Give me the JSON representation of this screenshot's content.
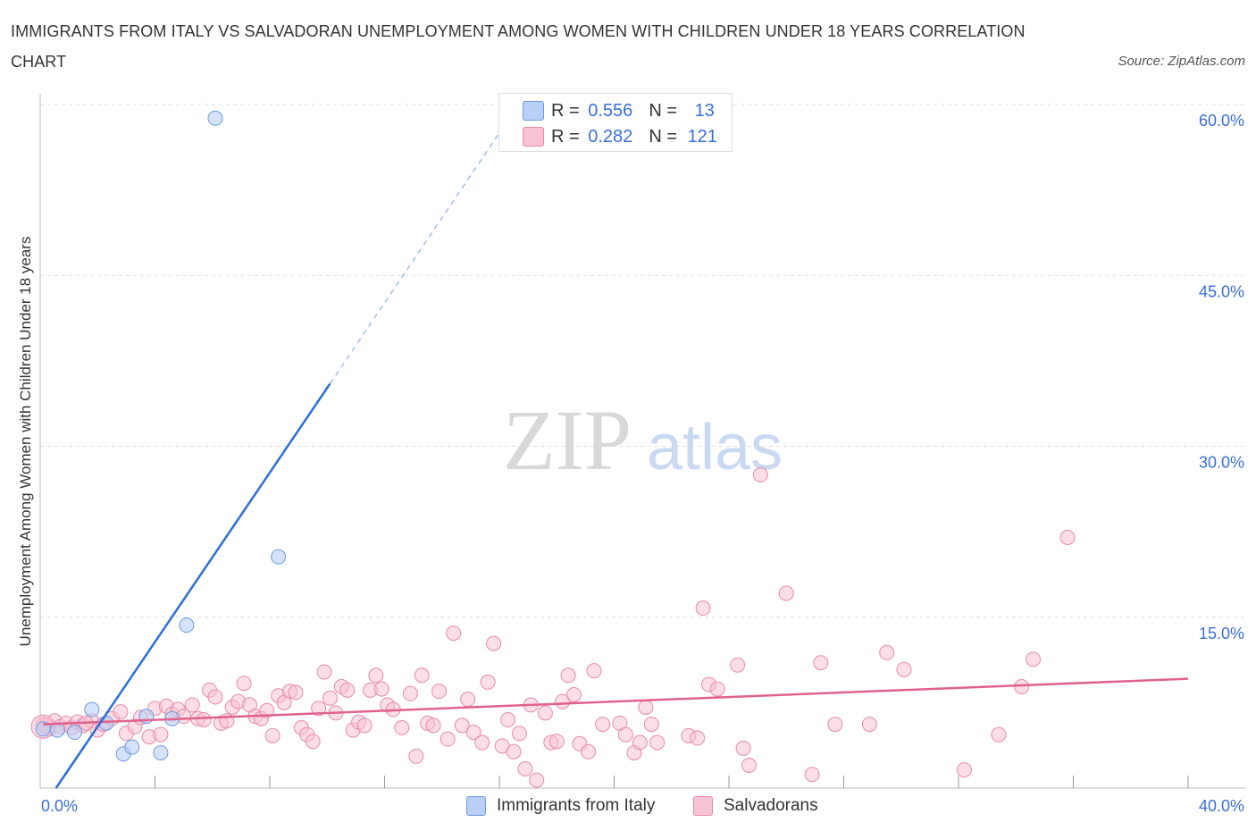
{
  "title": "IMMIGRANTS FROM ITALY VS SALVADORAN UNEMPLOYMENT AMONG WOMEN WITH CHILDREN UNDER 18 YEARS CORRELATION CHART",
  "source": "Source: ZipAtlas.com",
  "watermark": {
    "zip": "ZIP",
    "atlas": "atlas"
  },
  "legend_top": {
    "rows": [
      {
        "r_label": "R = ",
        "r_value": "0.556",
        "n_label": "N = ",
        "n_value": "13"
      },
      {
        "r_label": "R = ",
        "r_value": "0.282",
        "n_label": "N = ",
        "n_value": "121"
      }
    ]
  },
  "legend_bottom": {
    "series_a": "Immigrants from Italy",
    "series_b": "Salvadorans"
  },
  "colors": {
    "blue_fill": "#b9cff5",
    "blue_stroke": "#6d9be0",
    "blue_line": "#2e6fd1",
    "pink_fill": "#f7c2d4",
    "pink_stroke": "#e98aa9",
    "pink_line": "#e0628c",
    "tick_label": "#3a6fd8",
    "grid": "#dddddd"
  },
  "chart_data": {
    "type": "scatter",
    "title": "IMMIGRANTS FROM ITALY VS SALVADORAN UNEMPLOYMENT AMONG WOMEN WITH CHILDREN UNDER 18 YEARS CORRELATION CHART",
    "xlabel": "",
    "ylabel": "Unemployment Among Women with Children Under 18 years",
    "xlim": [
      0,
      40
    ],
    "ylim": [
      0,
      60
    ],
    "x_tick_labels": [
      "0.0%",
      "40.0%"
    ],
    "y_tick_labels": [
      "15.0%",
      "30.0%",
      "45.0%",
      "60.0%"
    ],
    "y_ticks": [
      15,
      30,
      45,
      60
    ],
    "x_minor_ticks": [
      4,
      8,
      12,
      16,
      20,
      24,
      28,
      32,
      36,
      40
    ],
    "series": [
      {
        "name": "Immigrants from Italy",
        "R": 0.556,
        "N": 13,
        "points": [
          [
            0.1,
            5.2
          ],
          [
            0.6,
            5.1
          ],
          [
            1.2,
            4.9
          ],
          [
            1.8,
            6.9
          ],
          [
            2.3,
            5.7
          ],
          [
            2.9,
            3.0
          ],
          [
            3.2,
            3.6
          ],
          [
            3.7,
            6.3
          ],
          [
            4.2,
            3.1
          ],
          [
            4.6,
            6.1
          ],
          [
            5.1,
            14.3
          ],
          [
            6.1,
            58.8
          ],
          [
            8.3,
            20.3
          ]
        ],
        "trend": {
          "x0": 0.55,
          "y0": 0,
          "x1": 10.1,
          "y1": 35.5
        },
        "trend_dashed": {
          "x0": 10.1,
          "y0": 35.5,
          "x1": 16.8,
          "y1": 60.5
        }
      },
      {
        "name": "Salvadorans",
        "R": 0.282,
        "N": 121,
        "points": [
          [
            0.1,
            5.6
          ],
          [
            0.3,
            5.2
          ],
          [
            0.5,
            5.9
          ],
          [
            0.7,
            5.4
          ],
          [
            0.9,
            5.7
          ],
          [
            1.1,
            5.3
          ],
          [
            1.3,
            5.8
          ],
          [
            1.5,
            5.5
          ],
          [
            1.8,
            5.9
          ],
          [
            2.0,
            5.1
          ],
          [
            2.2,
            5.6
          ],
          [
            2.5,
            6.1
          ],
          [
            2.8,
            6.7
          ],
          [
            3.0,
            4.8
          ],
          [
            3.3,
            5.4
          ],
          [
            3.5,
            6.2
          ],
          [
            3.8,
            4.5
          ],
          [
            4.0,
            7.0
          ],
          [
            4.2,
            4.7
          ],
          [
            4.4,
            7.2
          ],
          [
            4.6,
            6.5
          ],
          [
            4.8,
            6.9
          ],
          [
            5.0,
            6.3
          ],
          [
            5.3,
            7.3
          ],
          [
            5.5,
            6.1
          ],
          [
            5.7,
            6.0
          ],
          [
            5.9,
            8.6
          ],
          [
            6.1,
            8.0
          ],
          [
            6.3,
            5.7
          ],
          [
            6.5,
            5.9
          ],
          [
            6.7,
            7.1
          ],
          [
            6.9,
            7.6
          ],
          [
            7.1,
            9.2
          ],
          [
            7.3,
            7.3
          ],
          [
            7.5,
            6.3
          ],
          [
            7.7,
            6.1
          ],
          [
            7.9,
            6.8
          ],
          [
            8.1,
            4.6
          ],
          [
            8.3,
            8.1
          ],
          [
            8.5,
            7.5
          ],
          [
            8.7,
            8.5
          ],
          [
            8.9,
            8.4
          ],
          [
            9.1,
            5.3
          ],
          [
            9.3,
            4.7
          ],
          [
            9.5,
            4.1
          ],
          [
            9.7,
            7.0
          ],
          [
            9.9,
            10.2
          ],
          [
            10.1,
            7.9
          ],
          [
            10.3,
            6.6
          ],
          [
            10.5,
            8.9
          ],
          [
            10.7,
            8.6
          ],
          [
            10.9,
            5.1
          ],
          [
            11.1,
            5.8
          ],
          [
            11.3,
            5.5
          ],
          [
            11.5,
            8.6
          ],
          [
            11.7,
            9.9
          ],
          [
            11.9,
            8.7
          ],
          [
            12.1,
            7.3
          ],
          [
            12.3,
            6.9
          ],
          [
            12.6,
            5.3
          ],
          [
            12.9,
            8.3
          ],
          [
            13.1,
            2.8
          ],
          [
            13.3,
            9.9
          ],
          [
            13.5,
            5.7
          ],
          [
            13.7,
            5.5
          ],
          [
            13.9,
            8.5
          ],
          [
            14.2,
            4.3
          ],
          [
            14.4,
            13.6
          ],
          [
            14.7,
            5.5
          ],
          [
            14.9,
            7.8
          ],
          [
            15.1,
            4.9
          ],
          [
            15.4,
            4.0
          ],
          [
            15.6,
            9.3
          ],
          [
            15.8,
            12.7
          ],
          [
            16.1,
            3.7
          ],
          [
            16.3,
            6.0
          ],
          [
            16.5,
            3.2
          ],
          [
            16.7,
            4.8
          ],
          [
            16.9,
            1.7
          ],
          [
            17.1,
            7.3
          ],
          [
            17.3,
            0.7
          ],
          [
            17.6,
            6.6
          ],
          [
            17.8,
            4.0
          ],
          [
            18.0,
            4.1
          ],
          [
            18.2,
            7.6
          ],
          [
            18.4,
            9.9
          ],
          [
            18.6,
            8.2
          ],
          [
            18.8,
            3.9
          ],
          [
            19.1,
            3.2
          ],
          [
            19.3,
            10.3
          ],
          [
            19.6,
            5.6
          ],
          [
            20.2,
            5.7
          ],
          [
            20.4,
            4.7
          ],
          [
            20.7,
            3.1
          ],
          [
            20.9,
            4.0
          ],
          [
            21.1,
            7.1
          ],
          [
            21.3,
            5.6
          ],
          [
            21.5,
            4.0
          ],
          [
            22.6,
            4.6
          ],
          [
            22.9,
            4.4
          ],
          [
            23.1,
            15.8
          ],
          [
            23.3,
            9.1
          ],
          [
            23.6,
            8.7
          ],
          [
            24.3,
            10.8
          ],
          [
            24.5,
            3.5
          ],
          [
            24.7,
            2.0
          ],
          [
            25.1,
            27.5
          ],
          [
            26.0,
            17.1
          ],
          [
            26.9,
            1.2
          ],
          [
            27.2,
            11.0
          ],
          [
            27.7,
            5.6
          ],
          [
            28.9,
            5.6
          ],
          [
            29.5,
            11.9
          ],
          [
            30.1,
            10.4
          ],
          [
            32.2,
            1.6
          ],
          [
            33.4,
            4.7
          ],
          [
            34.2,
            8.9
          ],
          [
            34.6,
            11.3
          ],
          [
            35.8,
            22.0
          ],
          [
            0.2,
            5.5
          ],
          [
            1.6,
            5.7
          ]
        ],
        "trend": {
          "x0": 0.1,
          "y0": 5.6,
          "x1": 40,
          "y1": 9.6
        }
      }
    ]
  }
}
